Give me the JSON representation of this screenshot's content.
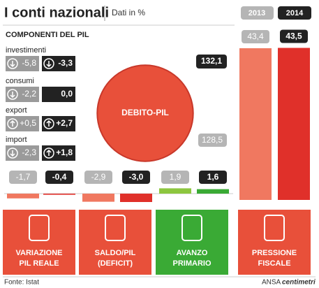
{
  "header": {
    "title": "I conti nazionali",
    "subtitle": "Dati in %",
    "years": [
      "2013",
      "2014"
    ]
  },
  "components": {
    "title": "COMPONENTI DEL PIL",
    "rows": [
      {
        "name": "investimenti",
        "values": [
          -5.8,
          -3.3
        ],
        "value_labels": [
          "-5,8",
          "-3,3"
        ]
      },
      {
        "name": "consumi",
        "values": [
          -2.2,
          0.0
        ],
        "value_labels": [
          "-2,2",
          "0,0"
        ]
      },
      {
        "name": "export",
        "values": [
          0.5,
          2.7
        ],
        "value_labels": [
          "+0,5",
          "+2,7"
        ]
      },
      {
        "name": "import",
        "values": [
          -2.3,
          1.8
        ],
        "value_labels": [
          "-2,3",
          "+1,8"
        ]
      }
    ]
  },
  "debt": {
    "label": "DEBITO-PIL",
    "values": [
      128.5,
      132.1
    ],
    "value_labels": [
      "128,5",
      "132,1"
    ]
  },
  "indicators": [
    {
      "name_lines": [
        "VARIAZIONE",
        "PIL REALE"
      ],
      "values": [
        -1.7,
        -0.4
      ],
      "value_labels": [
        "-1,7",
        "-0,4"
      ]
    },
    {
      "name_lines": [
        "SALDO/PIL",
        "(DEFICIT)"
      ],
      "values": [
        -2.9,
        -3.0
      ],
      "value_labels": [
        "-2,9",
        "-3,0"
      ]
    },
    {
      "name_lines": [
        "AVANZO",
        "PRIMARIO"
      ],
      "values": [
        1.9,
        1.6
      ],
      "value_labels": [
        "1,9",
        "1,6"
      ]
    },
    {
      "name_lines": [
        "PRESSIONE",
        "FISCALE"
      ],
      "values": [
        43.4,
        43.5
      ],
      "value_labels": [
        "43,4",
        "43,5"
      ]
    }
  ],
  "footer": {
    "source": "Fonte: Istat",
    "credit": "ANSA",
    "brand": "centimetri"
  }
}
